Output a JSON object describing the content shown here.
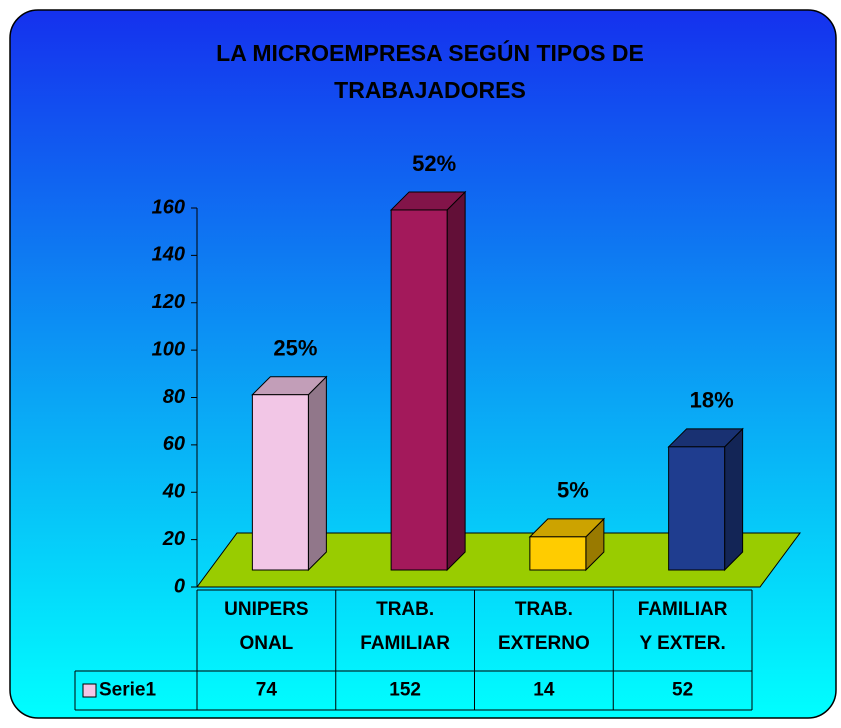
{
  "chart_data": {
    "type": "bar3d",
    "title": "LA MICROEMPRESA SEGÚN TIPOS DE TRABAJADORES",
    "categories": [
      "UNIPERS ONAL",
      "TRAB. FAMILIAR",
      "TRAB. EXTERNO",
      "FAMILIAR Y EXTER."
    ],
    "series": [
      {
        "name": "Serie1",
        "values": [
          74,
          152,
          14,
          52
        ],
        "colors": [
          "#f2c6e6",
          "#a3195b",
          "#ffcc00",
          "#1f3d8f"
        ]
      }
    ],
    "data_labels": [
      "25%",
      "52%",
      "5%",
      "18%"
    ],
    "ylim": [
      0,
      160
    ],
    "yticks": [
      0,
      20,
      40,
      60,
      80,
      100,
      120,
      140,
      160
    ],
    "floor_color": "#99cc00",
    "data_table": true
  }
}
